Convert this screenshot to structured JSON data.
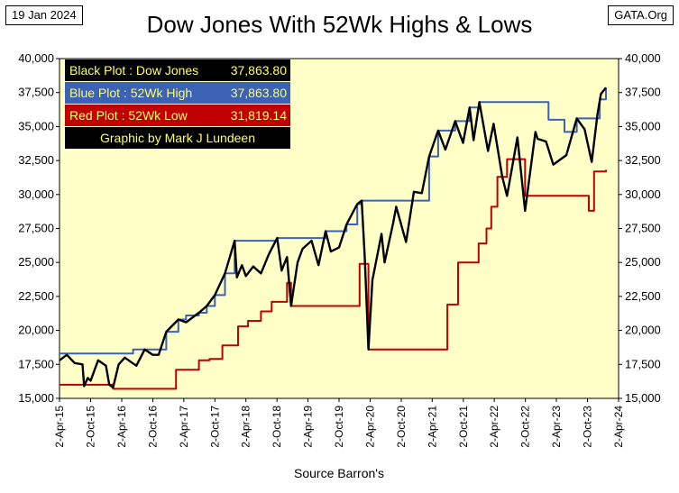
{
  "header": {
    "date": "19 Jan 2024",
    "source_site": "GATA.Org",
    "title": "Dow Jones With 52Wk Highs & Lows"
  },
  "legend": {
    "rows": [
      {
        "label": "Black Plot : Dow Jones",
        "value": "37,863.80",
        "bg": "#000000",
        "fg": "#ffff66"
      },
      {
        "label": "Blue Plot  :  52Wk High",
        "value": "37,863.80",
        "bg": "#3b62b5",
        "fg": "#ffff66"
      },
      {
        "label": "Red Plot   :  52Wk Low",
        "value": "31,819.14",
        "bg": "#c00000",
        "fg": "#ffff66"
      },
      {
        "label": "Graphic by Mark J Lundeen",
        "value": "",
        "bg": "#000000",
        "fg": "#ffff66"
      }
    ]
  },
  "chart_data": {
    "type": "line",
    "title": "Dow Jones With 52Wk Highs & Lows",
    "xlabel": "Source Barron's",
    "ylabel": "",
    "ylim": [
      15000,
      40000
    ],
    "yticks": [
      15000,
      17500,
      20000,
      22500,
      25000,
      27500,
      30000,
      32500,
      35000,
      37500,
      40000
    ],
    "ytick_labels": [
      "15,000",
      "17,500",
      "20,000",
      "22,500",
      "25,000",
      "27,500",
      "30,000",
      "32,500",
      "35,000",
      "37,500",
      "40,000"
    ],
    "xticks": [
      "2-Apr-15",
      "2-Oct-15",
      "2-Apr-16",
      "2-Oct-16",
      "2-Apr-17",
      "2-Oct-17",
      "2-Apr-18",
      "2-Oct-18",
      "2-Apr-19",
      "2-Oct-19",
      "2-Apr-20",
      "2-Oct-20",
      "2-Apr-21",
      "2-Oct-21",
      "2-Apr-22",
      "2-Oct-22",
      "2-Apr-23",
      "2-Oct-23",
      "2-Apr-24"
    ],
    "grid": false,
    "background": "#ffffc8",
    "series": [
      {
        "name": "Dow Jones",
        "color": "#000000",
        "x": [
          "2015-04-02",
          "2015-05-15",
          "2015-06-30",
          "2015-08-15",
          "2015-08-25",
          "2015-09-15",
          "2015-10-02",
          "2015-11-15",
          "2015-12-31",
          "2016-01-20",
          "2016-02-11",
          "2016-03-15",
          "2016-04-20",
          "2016-06-27",
          "2016-08-15",
          "2016-10-02",
          "2016-11-05",
          "2016-12-20",
          "2017-03-01",
          "2017-04-15",
          "2017-06-30",
          "2017-08-15",
          "2017-10-02",
          "2017-11-30",
          "2018-01-26",
          "2018-02-08",
          "2018-03-10",
          "2018-04-02",
          "2018-05-15",
          "2018-06-30",
          "2018-08-15",
          "2018-10-03",
          "2018-10-29",
          "2018-11-30",
          "2018-12-24",
          "2019-01-31",
          "2019-03-01",
          "2019-04-23",
          "2019-06-03",
          "2019-07-15",
          "2019-08-15",
          "2019-10-02",
          "2019-11-15",
          "2020-01-17",
          "2020-02-12",
          "2020-03-01",
          "2020-03-23",
          "2020-04-15",
          "2020-06-08",
          "2020-06-26",
          "2020-08-15",
          "2020-09-02",
          "2020-10-30",
          "2020-12-15",
          "2021-01-31",
          "2021-03-15",
          "2021-05-07",
          "2021-06-18",
          "2021-08-15",
          "2021-09-30",
          "2021-11-08",
          "2021-12-01",
          "2022-01-04",
          "2022-02-24",
          "2022-03-29",
          "2022-05-19",
          "2022-06-16",
          "2022-08-16",
          "2022-09-30",
          "2022-11-30",
          "2022-12-13",
          "2023-01-31",
          "2023-03-15",
          "2023-05-31",
          "2023-07-31",
          "2023-09-15",
          "2023-10-27",
          "2023-11-30",
          "2023-12-20",
          "2024-01-19"
        ],
        "values": [
          17800,
          18200,
          17600,
          17500,
          15900,
          16500,
          16300,
          17800,
          17400,
          16000,
          15800,
          17500,
          18000,
          17400,
          18600,
          18200,
          18200,
          19900,
          20800,
          20600,
          21300,
          21800,
          22600,
          24200,
          26600,
          23900,
          24800,
          24000,
          24700,
          24200,
          25600,
          26800,
          24400,
          25400,
          21800,
          25000,
          26000,
          26600,
          24800,
          27300,
          25800,
          26100,
          27800,
          29300,
          29550,
          25400,
          18600,
          23700,
          27100,
          25000,
          27900,
          29100,
          26500,
          30200,
          30100,
          32800,
          34700,
          33300,
          35400,
          33800,
          36400,
          34000,
          36800,
          33200,
          35200,
          31300,
          29900,
          34200,
          28800,
          34600,
          34100,
          33900,
          32200,
          32900,
          35600,
          34800,
          32400,
          35900,
          37400,
          37860
        ]
      },
      {
        "name": "52Wk High",
        "color": "#3b62b5",
        "x": [
          "2015-04-02",
          "2015-05-19",
          "2016-03-20",
          "2016-06-08",
          "2016-07-15",
          "2016-11-10",
          "2016-12-20",
          "2017-03-01",
          "2017-04-15",
          "2017-06-30",
          "2017-08-15",
          "2017-10-02",
          "2017-11-30",
          "2018-01-26",
          "2018-10-03",
          "2019-04-23",
          "2019-07-15",
          "2019-11-15",
          "2020-01-17",
          "2020-02-12",
          "2021-01-10",
          "2021-03-15",
          "2021-05-07",
          "2021-08-15",
          "2021-11-08",
          "2022-01-04",
          "2023-01-05",
          "2023-02-15",
          "2023-03-25",
          "2023-05-20",
          "2023-07-31",
          "2023-11-20",
          "2023-12-13",
          "2024-01-19"
        ],
        "values": [
          18300,
          18300,
          18300,
          18600,
          18600,
          18600,
          19900,
          20800,
          21100,
          21300,
          21800,
          22600,
          24200,
          26600,
          26800,
          26800,
          27300,
          27800,
          29300,
          29550,
          29550,
          32800,
          34700,
          35400,
          36400,
          36800,
          36800,
          35500,
          35500,
          34600,
          35600,
          35600,
          37000,
          37860
        ]
      },
      {
        "name": "52Wk Low",
        "color": "#c00000",
        "x": [
          "2015-04-02",
          "2015-08-24",
          "2016-02-11",
          "2016-12-31",
          "2017-02-15",
          "2017-06-30",
          "2017-08-31",
          "2017-11-15",
          "2018-02-15",
          "2018-04-15",
          "2018-06-30",
          "2018-09-01",
          "2018-11-30",
          "2018-12-24",
          "2019-12-30",
          "2020-01-31",
          "2020-03-23",
          "2021-03-23",
          "2021-06-30",
          "2021-09-01",
          "2021-12-31",
          "2022-02-15",
          "2022-03-15",
          "2022-04-20",
          "2022-06-16",
          "2022-09-30",
          "2023-10-10",
          "2023-11-10",
          "2024-01-19"
        ],
        "values": [
          16000,
          16000,
          15700,
          15700,
          17100,
          17800,
          17900,
          18900,
          20300,
          20700,
          21400,
          22100,
          23500,
          21800,
          21800,
          24900,
          18600,
          18600,
          21900,
          25000,
          26400,
          27500,
          29100,
          31300,
          32600,
          29900,
          28800,
          31700,
          31819
        ]
      }
    ],
    "current_values": {
      "dow": 37863.8,
      "high52": 37863.8,
      "low52": 31819.14
    }
  }
}
